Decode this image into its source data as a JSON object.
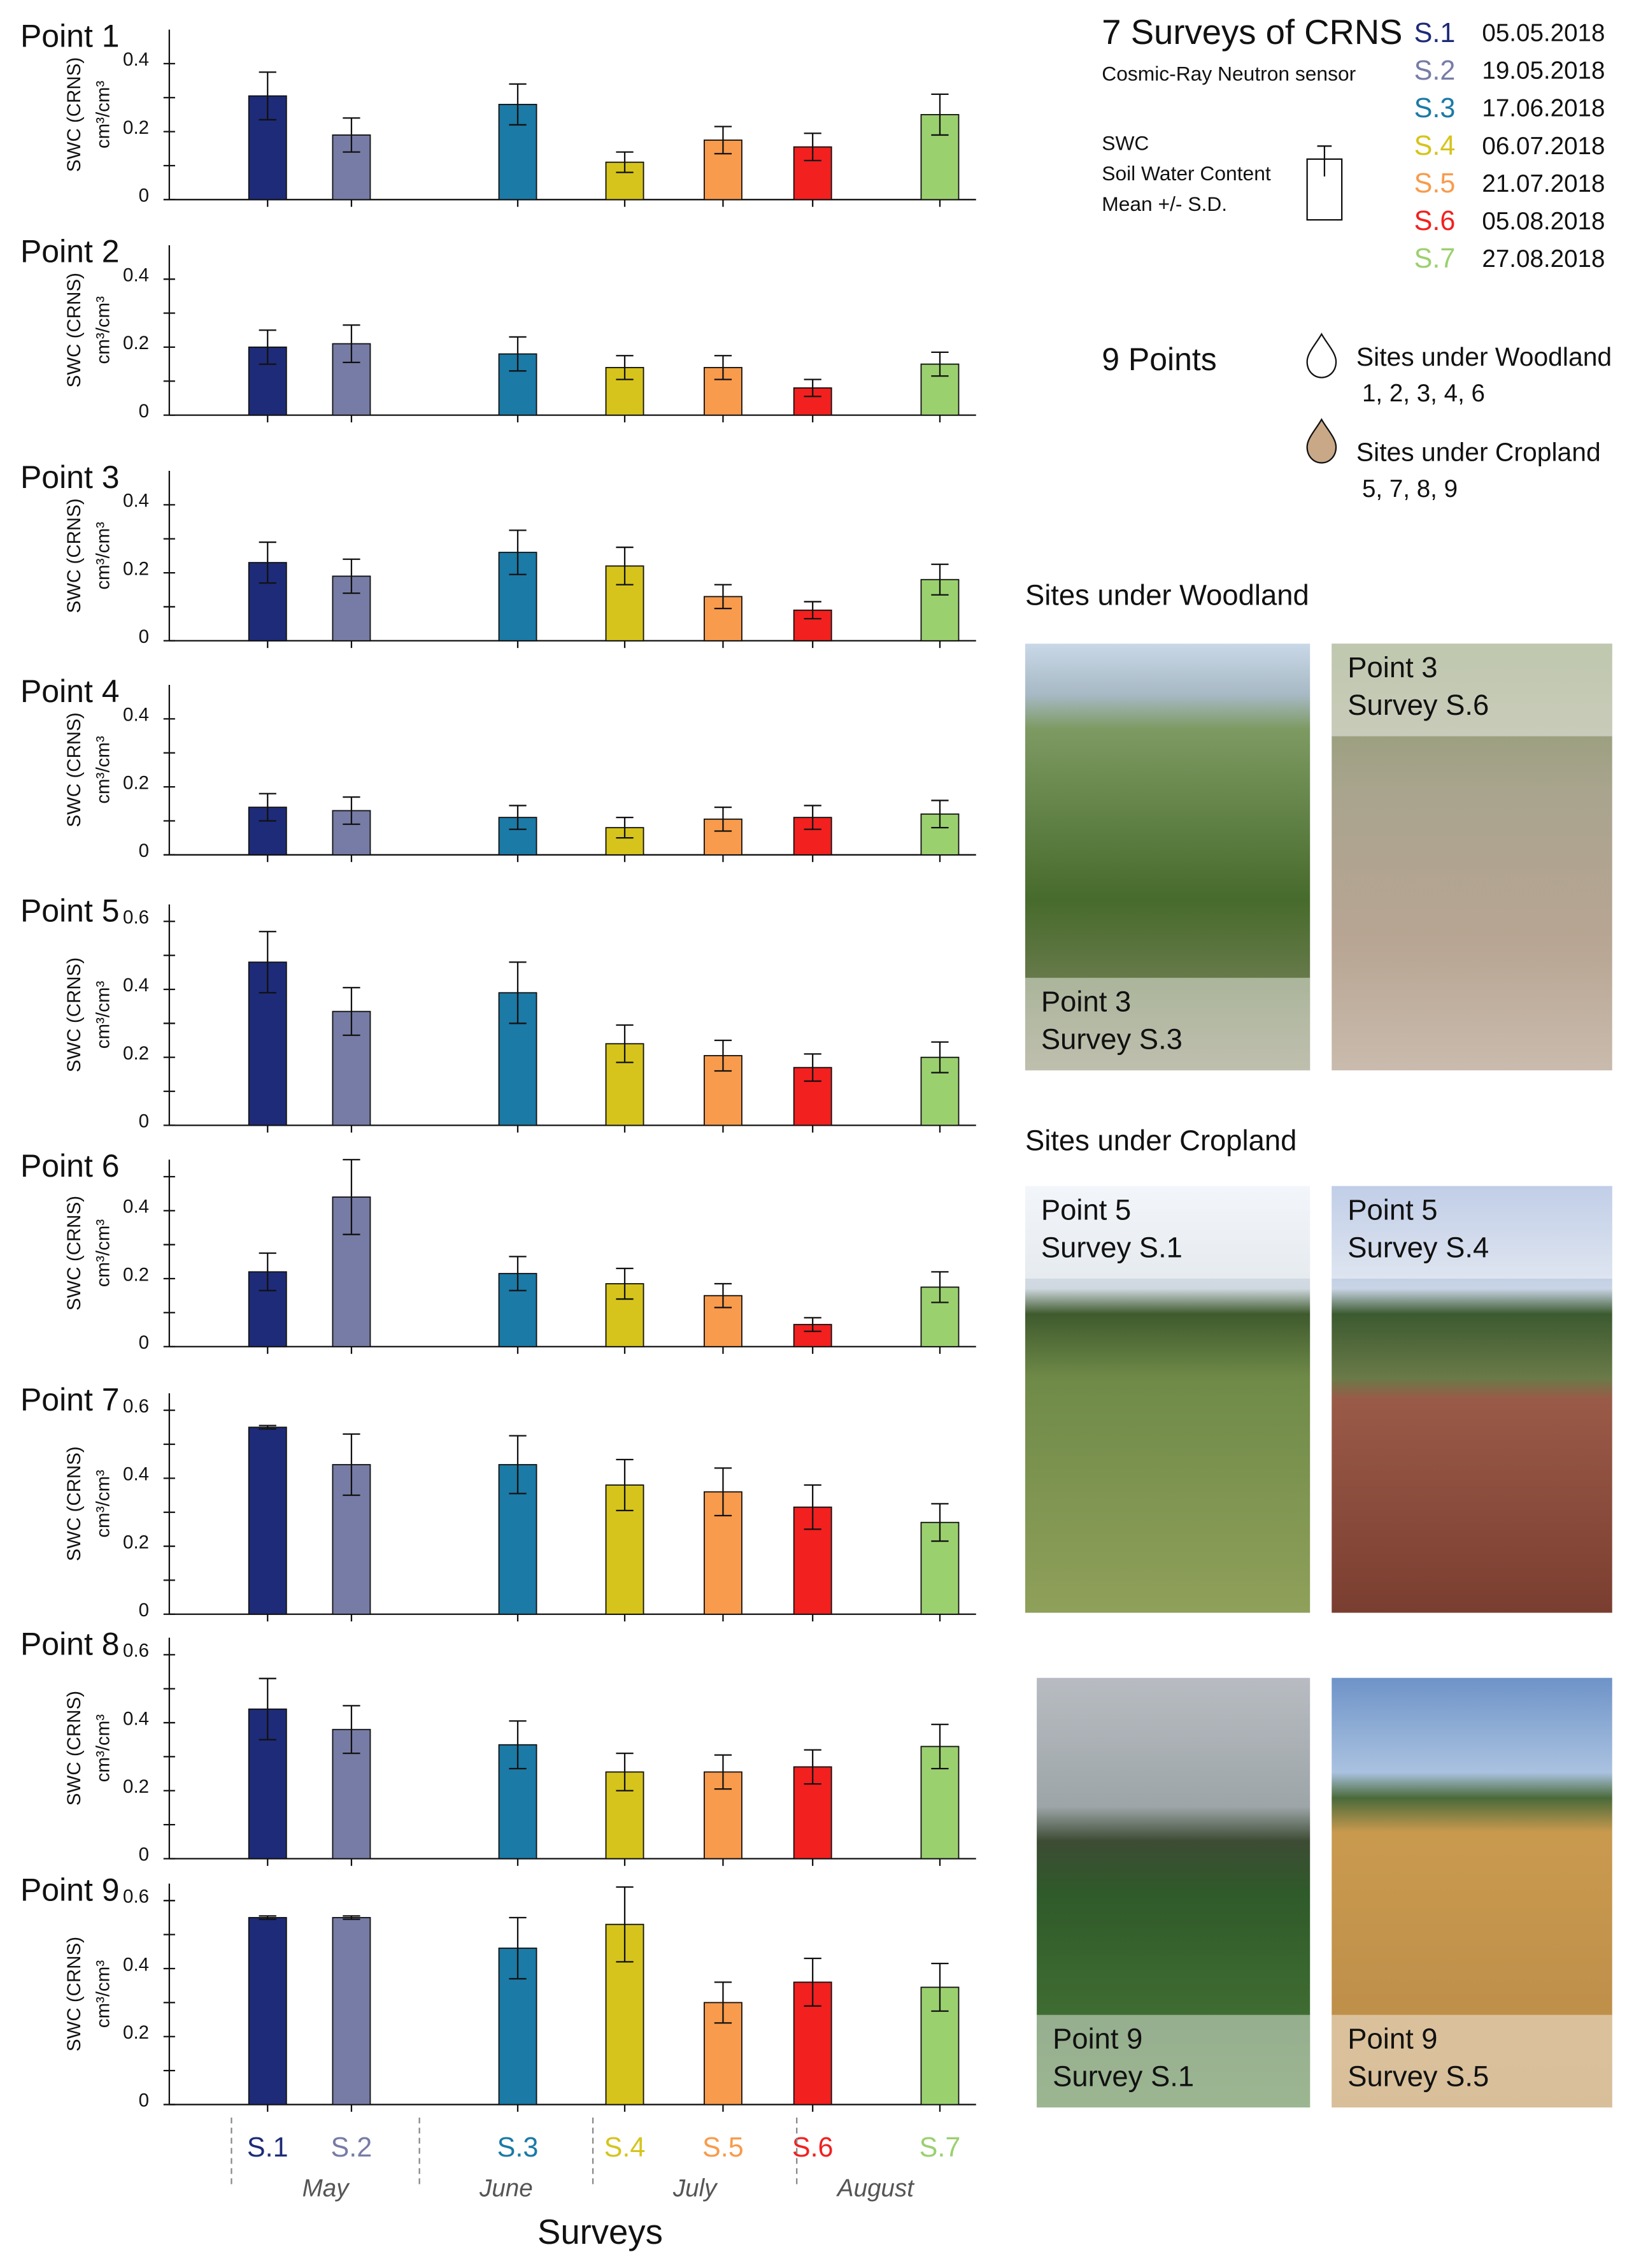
{
  "x_axis": {
    "categories": [
      "S.1",
      "S.2",
      "S.3",
      "S.4",
      "S.5",
      "S.6",
      "S.7"
    ],
    "colors": [
      "#1e2b78",
      "#777ca6",
      "#1b7aa6",
      "#d6c41c",
      "#f89b4c",
      "#f2201f",
      "#9bd06f"
    ],
    "months": [
      "May",
      "June",
      "July",
      "August"
    ],
    "label": "Surveys"
  },
  "chart_data": [
    {
      "type": "bar",
      "title": "Point 1",
      "ylabel": [
        "SWC (CRNS)",
        "cm³/cm³"
      ],
      "ylim": [
        0,
        0.5
      ],
      "yticks": [
        0,
        0.2,
        0.4
      ],
      "yticks_minor": [
        0.1,
        0.3
      ],
      "values": [
        0.305,
        0.19,
        0.28,
        0.11,
        0.175,
        0.155,
        0.25
      ],
      "errors": [
        0.07,
        0.05,
        0.06,
        0.03,
        0.04,
        0.04,
        0.06
      ]
    },
    {
      "type": "bar",
      "title": "Point 2",
      "ylabel": [
        "SWC (CRNS)",
        "cm³/cm³"
      ],
      "ylim": [
        0,
        0.5
      ],
      "yticks": [
        0,
        0.2,
        0.4
      ],
      "yticks_minor": [
        0.1,
        0.3
      ],
      "values": [
        0.2,
        0.21,
        0.18,
        0.14,
        0.14,
        0.08,
        0.15
      ],
      "errors": [
        0.05,
        0.055,
        0.05,
        0.035,
        0.035,
        0.025,
        0.035
      ]
    },
    {
      "type": "bar",
      "title": "Point 3",
      "ylabel": [
        "SWC (CRNS)",
        "cm³/cm³"
      ],
      "ylim": [
        0,
        0.5
      ],
      "yticks": [
        0,
        0.2,
        0.4
      ],
      "yticks_minor": [
        0.1,
        0.3
      ],
      "values": [
        0.23,
        0.19,
        0.26,
        0.22,
        0.13,
        0.09,
        0.18
      ],
      "errors": [
        0.06,
        0.05,
        0.065,
        0.055,
        0.035,
        0.025,
        0.045
      ]
    },
    {
      "type": "bar",
      "title": "Point 4",
      "ylabel": [
        "SWC (CRNS)",
        "cm³/cm³"
      ],
      "ylim": [
        0,
        0.5
      ],
      "yticks": [
        0,
        0.2,
        0.4
      ],
      "yticks_minor": [
        0.1,
        0.3
      ],
      "values": [
        0.14,
        0.13,
        0.11,
        0.08,
        0.105,
        0.11,
        0.12
      ],
      "errors": [
        0.04,
        0.04,
        0.035,
        0.03,
        0.035,
        0.035,
        0.04
      ]
    },
    {
      "type": "bar",
      "title": "Point 5",
      "ylabel": [
        "SWC (CRNS)",
        "cm³/cm³"
      ],
      "ylim": [
        0,
        0.65
      ],
      "yticks": [
        0,
        0.2,
        0.4,
        0.6
      ],
      "yticks_minor": [
        0.1,
        0.3,
        0.5
      ],
      "values": [
        0.48,
        0.335,
        0.39,
        0.24,
        0.205,
        0.17,
        0.2
      ],
      "errors": [
        0.09,
        0.07,
        0.09,
        0.055,
        0.045,
        0.04,
        0.045
      ]
    },
    {
      "type": "bar",
      "title": "Point 6",
      "ylabel": [
        "SWC (CRNS)",
        "cm³/cm³"
      ],
      "ylim": [
        0,
        0.55
      ],
      "yticks": [
        0,
        0.2,
        0.4
      ],
      "yticks_minor": [
        0.1,
        0.3,
        0.5
      ],
      "values": [
        0.22,
        0.44,
        0.215,
        0.185,
        0.15,
        0.065,
        0.175
      ],
      "errors": [
        0.055,
        0.11,
        0.05,
        0.045,
        0.035,
        0.02,
        0.045
      ]
    },
    {
      "type": "bar",
      "title": "Point 7",
      "ylabel": [
        "SWC (CRNS)",
        "cm³/cm³"
      ],
      "ylim": [
        0,
        0.65
      ],
      "yticks": [
        0,
        0.2,
        0.4,
        0.6
      ],
      "yticks_minor": [
        0.1,
        0.3,
        0.5
      ],
      "values": [
        0.55,
        0.44,
        0.44,
        0.38,
        0.36,
        0.315,
        0.27
      ],
      "errors": [
        0.005,
        0.09,
        0.085,
        0.075,
        0.07,
        0.065,
        0.055
      ]
    },
    {
      "type": "bar",
      "title": "Point 8",
      "ylabel": [
        "SWC (CRNS)",
        "cm³/cm³"
      ],
      "ylim": [
        0,
        0.65
      ],
      "yticks": [
        0,
        0.2,
        0.4,
        0.6
      ],
      "yticks_minor": [
        0.1,
        0.3,
        0.5
      ],
      "values": [
        0.44,
        0.38,
        0.335,
        0.255,
        0.255,
        0.27,
        0.33
      ],
      "errors": [
        0.09,
        0.07,
        0.07,
        0.055,
        0.05,
        0.05,
        0.065
      ]
    },
    {
      "type": "bar",
      "title": "Point 9",
      "ylabel": [
        "SWC (CRNS)",
        "cm³/cm³"
      ],
      "ylim": [
        0,
        0.65
      ],
      "yticks": [
        0,
        0.2,
        0.4,
        0.6
      ],
      "yticks_minor": [
        0.1,
        0.3,
        0.5
      ],
      "values": [
        0.55,
        0.55,
        0.46,
        0.53,
        0.3,
        0.36,
        0.345
      ],
      "errors": [
        0.005,
        0.005,
        0.09,
        0.11,
        0.06,
        0.07,
        0.07
      ]
    }
  ],
  "legend": {
    "title": "7 Surveys of CRNS",
    "subtitle": "Cosmic-Ray Neutron sensor",
    "dates": [
      "05.05.2018",
      "19.05.2018",
      "17.06.2018",
      "06.07.2018",
      "21.07.2018",
      "05.08.2018",
      "27.08.2018"
    ],
    "swc": [
      "SWC",
      "Soil Water Content",
      "Mean +/- S.D."
    ],
    "points_title": "9 Points",
    "woodland": {
      "label": "Sites under Woodland",
      "points": "1, 2, 3, 4, 6"
    },
    "cropland": {
      "label": "Sites under Cropland",
      "points": "5, 7, 8, 9"
    }
  },
  "photos": {
    "woodland_heading": "Sites under Woodland",
    "cropland_heading": "Sites under Cropland",
    "items": [
      {
        "point": "Point 3",
        "survey": "Survey S.3"
      },
      {
        "point": "Point 3",
        "survey": "Survey S.6"
      },
      {
        "point": "Point 5",
        "survey": "Survey S.1"
      },
      {
        "point": "Point 5",
        "survey": "Survey S.4"
      },
      {
        "point": "Point 9",
        "survey": "Survey S.1"
      },
      {
        "point": "Point 9",
        "survey": "Survey S.5"
      }
    ]
  }
}
